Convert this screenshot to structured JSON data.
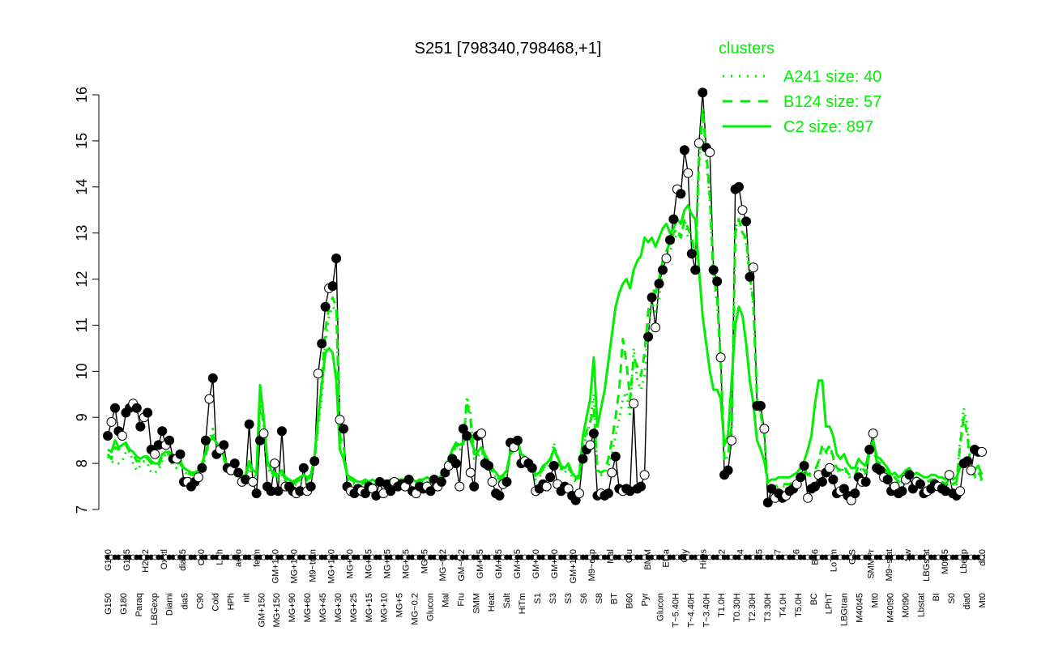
{
  "chart_data": {
    "type": "line",
    "title": "S251 [798340,798468,+1]",
    "xlabel": "",
    "ylabel": "",
    "ylim": [
      7,
      16
    ],
    "yticks": [
      7,
      8,
      9,
      10,
      11,
      12,
      13,
      14,
      15,
      16
    ],
    "grid": false,
    "legend": {
      "title": "clusters",
      "placement": "top-right",
      "color": "#00ee00",
      "entries": [
        {
          "label": "A241 size: 40",
          "style": "dotted"
        },
        {
          "label": "B124 size: 57",
          "style": "dashed"
        },
        {
          "label": "C2 size: 897",
          "style": "solid"
        }
      ]
    },
    "top_labels": [
      "G150",
      "G135",
      "H2O2",
      "Oxctl",
      "dia15",
      "C30",
      "LPh",
      "aero",
      "ferm",
      "GM+150",
      "MG+150",
      "M9~tran",
      "MG+120",
      "MG+60",
      "MG+45",
      "MG+25",
      "MG+15",
      "MG+5",
      "MG~0.2",
      "GM~0.2",
      "GM+15",
      "GM+25",
      "GM+45",
      "GM+60",
      "GM+90",
      "GM+120",
      "M9~exp",
      "Mal",
      "Glu",
      "BMM",
      "Etha",
      "Gly",
      "HiOs",
      "S2",
      "S4",
      "S5",
      "S7",
      "S6",
      "B36",
      "LoTm",
      "G/S",
      "SMMPr",
      "M9~stat",
      "Sw",
      "LBGstat",
      "M0t45",
      "Lbexp",
      "dia0"
    ],
    "bottom_labels": [
      "G150",
      "G180",
      "Paraq",
      "LBGexp",
      "Diami",
      "dia5",
      "C90",
      "Cold",
      "HPh",
      "nit",
      "GM+150",
      "MG+150",
      "MG+90",
      "MG+60",
      "MG+45",
      "MG+30",
      "MG+25",
      "MG+15",
      "MG+10",
      "MG+5",
      "MG~0.2",
      "Glucon",
      "Mal",
      "Fru",
      "SMM",
      "Heat",
      "Salt",
      "HiTm",
      "S1",
      "S3",
      "S3",
      "S6",
      "S8",
      "BT",
      "B60",
      "Pyr",
      "Glucon",
      "T~5.40H",
      "T~4.40H",
      "T~3.40H",
      "T1.0H",
      "T0.30H",
      "T2.30H",
      "T3.30H",
      "T4.0H",
      "T5.0H",
      "BC",
      "LPhT",
      "LBGtran",
      "M40t45",
      "Mt0",
      "M40t90",
      "M0t90",
      "Lbstat",
      "BI",
      "S0",
      "dia0",
      "Mt0"
    ],
    "series": [
      {
        "color": "#000000",
        "y": [
          8.6,
          8.9,
          9.2,
          8.7,
          8.6,
          9.1,
          9.2,
          9.3,
          9.2,
          8.8,
          9.0,
          9.1,
          8.3,
          8.2,
          8.4,
          8.7,
          8.4,
          8.5,
          8.1,
          8.1,
          8.2,
          7.6,
          7.6,
          7.5,
          7.6,
          7.7,
          7.9,
          8.5,
          9.4,
          9.85,
          8.2,
          8.3,
          8.4,
          7.9,
          7.85,
          8.0,
          7.8,
          7.6,
          7.65,
          8.85,
          7.6,
          7.35,
          8.5,
          8.65,
          7.5,
          7.4,
          8.0,
          7.4,
          8.7,
          7.5,
          7.5,
          7.4,
          7.35,
          7.4,
          7.9,
          7.4,
          7.5,
          8.05,
          9.95,
          10.6,
          11.4,
          11.8,
          11.85,
          12.45,
          8.95,
          8.75,
          7.5,
          7.4,
          7.35,
          7.45,
          7.4,
          7.35,
          7.5,
          7.45,
          7.3,
          7.6,
          7.35,
          7.55,
          7.4,
          7.6,
          7.5,
          7.55,
          7.5,
          7.65,
          7.4,
          7.35,
          7.5,
          7.45,
          7.5,
          7.4,
          7.65,
          7.5,
          7.6,
          7.8,
          7.95,
          8.1,
          8.0,
          7.5,
          8.75,
          8.6,
          7.8,
          7.5,
          8.6,
          8.65,
          8.0,
          7.95,
          7.6,
          7.35,
          7.3,
          7.55,
          7.6,
          8.45,
          8.35,
          8.5,
          8.0,
          8.05,
          8.0,
          7.9,
          7.4,
          7.45,
          7.55,
          7.5,
          7.7,
          7.95,
          7.55,
          7.4,
          7.5,
          7.45,
          7.3,
          7.2,
          7.35,
          8.1,
          8.3,
          8.4,
          8.65,
          7.3,
          7.35,
          7.3,
          7.35,
          7.8,
          8.15,
          7.45,
          7.4,
          7.45,
          7.4,
          9.3,
          7.45,
          7.5,
          7.75,
          10.75,
          11.6,
          10.95,
          11.9,
          12.2,
          12.45,
          12.85,
          13.3,
          13.95,
          13.85,
          14.8,
          14.3,
          12.55,
          12.2,
          14.95,
          16.05,
          14.85,
          14.75,
          12.2,
          11.95,
          10.3,
          7.75,
          7.85,
          8.5,
          13.95,
          14.0,
          13.5,
          13.25,
          12.05,
          12.25,
          9.25,
          9.25,
          8.75,
          7.15,
          7.45,
          7.25,
          7.35,
          7.25,
          7.3,
          7.4,
          7.45,
          7.55,
          7.7,
          7.95,
          7.25,
          7.45,
          7.5,
          7.75,
          7.6,
          7.8,
          7.9,
          7.65,
          7.35,
          7.4,
          7.45,
          7.3,
          7.2,
          7.35,
          7.7,
          7.6,
          7.6,
          8.3,
          8.65,
          7.9,
          7.85,
          7.7,
          7.65,
          7.4,
          7.5,
          7.35,
          7.4,
          7.65,
          7.75,
          7.45,
          7.6,
          7.55,
          7.35,
          7.4,
          7.45,
          7.55,
          7.5,
          7.45,
          7.4,
          7.75,
          7.35,
          7.3,
          7.4,
          8.0,
          8.05,
          7.85,
          8.3,
          8.25,
          8.25
        ]
      },
      {
        "name": "A241",
        "style": "dotted",
        "color": "#00ee00",
        "y": [
          8.15,
          8.05,
          8.0,
          8.0,
          8.05,
          8.25,
          8.3,
          8.0,
          7.85,
          7.95,
          8.05,
          8.0,
          7.8,
          7.8,
          7.85,
          8.05,
          8.2,
          8.15,
          7.95,
          7.9,
          8.1,
          7.85,
          7.75,
          7.65,
          7.7,
          7.75,
          7.9,
          8.15,
          8.5,
          8.75,
          8.4,
          8.25,
          8.1,
          7.9,
          7.75,
          7.8,
          7.65,
          7.55,
          7.6,
          7.9,
          7.75,
          7.7,
          9.5,
          8.8,
          7.95,
          7.75,
          7.7,
          7.65,
          7.75,
          7.6,
          7.55,
          7.5,
          7.55,
          7.6,
          7.65,
          7.6,
          7.65,
          8.0,
          8.8,
          9.4,
          10.6,
          11.2,
          11.4,
          11.3,
          8.5,
          8.35,
          7.65,
          7.6,
          7.55,
          7.5,
          7.5,
          7.55,
          7.5,
          7.55,
          7.5,
          7.55,
          7.5,
          7.5,
          7.55,
          7.5,
          7.55,
          7.55,
          7.55,
          7.6,
          7.55,
          7.5,
          7.55,
          7.55,
          7.6,
          7.55,
          7.6,
          7.55,
          7.65,
          7.8,
          8.0,
          8.2,
          8.35,
          8.3,
          8.35,
          9.45,
          9.1,
          8.1,
          8.15,
          8.25,
          8.1,
          7.95,
          7.8,
          7.7,
          7.6,
          7.65,
          7.75,
          8.2,
          8.25,
          8.4,
          8.1,
          8.05,
          7.95,
          7.9,
          7.65,
          7.7,
          7.85,
          7.9,
          8.0,
          8.45,
          8.1,
          7.85,
          7.8,
          7.9,
          7.7,
          7.6,
          7.65,
          8.3,
          8.6,
          8.9,
          9.5,
          7.8,
          7.75,
          7.8,
          7.95,
          8.2,
          8.6,
          8.95,
          9.4,
          9.55,
          9.0,
          10.5,
          9.8,
          9.6,
          9.9,
          10.9,
          11.5,
          11.3,
          11.6,
          12.2,
          12.3,
          12.6,
          12.8,
          13.0,
          12.9,
          13.3,
          12.9,
          12.8,
          12.6,
          14.4,
          15.7,
          14.6,
          13.7,
          12.0,
          11.5,
          10.2,
          8.05,
          8.15,
          8.7,
          13.1,
          13.3,
          13.0,
          12.8,
          12.0,
          11.4,
          9.4,
          9.05,
          8.6,
          7.4,
          7.45,
          7.45,
          7.5,
          7.5,
          7.5,
          7.5,
          7.55,
          7.6,
          7.7,
          7.85,
          7.7,
          7.75,
          7.8,
          8.0,
          8.4,
          8.2,
          8.35,
          8.1,
          7.85,
          7.8,
          7.9,
          7.75,
          7.65,
          7.7,
          7.9,
          7.85,
          7.75,
          8.2,
          8.35,
          8.0,
          7.95,
          7.85,
          7.75,
          7.6,
          7.65,
          7.55,
          7.6,
          7.7,
          7.75,
          7.6,
          7.65,
          7.6,
          7.55,
          7.55,
          7.6,
          7.6,
          7.55,
          7.55,
          7.5,
          7.6,
          7.5,
          7.55,
          8.5,
          9.2,
          8.8,
          7.75,
          7.7,
          7.8,
          7.6
        ]
      },
      {
        "name": "B124",
        "style": "dashed",
        "color": "#00ee00",
        "y": [
          8.2,
          8.1,
          8.35,
          8.3,
          8.4,
          8.4,
          8.25,
          8.2,
          8.05,
          8.05,
          8.1,
          8.1,
          8.0,
          7.95,
          7.95,
          8.15,
          8.2,
          8.2,
          8.05,
          8.0,
          8.0,
          7.85,
          7.8,
          7.75,
          7.75,
          7.8,
          7.95,
          8.2,
          8.45,
          8.6,
          8.4,
          8.3,
          8.1,
          7.9,
          7.8,
          7.8,
          7.7,
          7.65,
          7.7,
          8.0,
          7.8,
          7.75,
          9.25,
          8.9,
          8.0,
          7.8,
          7.75,
          7.7,
          7.8,
          7.65,
          7.6,
          7.55,
          7.6,
          7.65,
          7.7,
          7.65,
          7.7,
          8.1,
          8.9,
          9.8,
          10.9,
          11.4,
          11.6,
          11.4,
          8.6,
          8.4,
          7.7,
          7.65,
          7.6,
          7.55,
          7.55,
          7.6,
          7.55,
          7.6,
          7.55,
          7.6,
          7.55,
          7.55,
          7.6,
          7.55,
          7.6,
          7.6,
          7.6,
          7.65,
          7.6,
          7.55,
          7.6,
          7.6,
          7.65,
          7.6,
          7.65,
          7.6,
          7.7,
          7.85,
          8.05,
          8.25,
          8.4,
          8.35,
          8.4,
          9.35,
          8.95,
          8.2,
          8.2,
          8.3,
          8.15,
          8.0,
          7.85,
          7.75,
          7.65,
          7.7,
          7.8,
          8.2,
          8.3,
          8.45,
          8.15,
          8.1,
          8.0,
          7.95,
          7.7,
          7.75,
          7.9,
          7.95,
          8.05,
          8.35,
          8.1,
          7.9,
          7.85,
          7.95,
          7.75,
          7.65,
          7.7,
          8.4,
          8.7,
          8.9,
          9.2,
          7.85,
          7.8,
          7.85,
          8.1,
          8.5,
          9.0,
          9.6,
          10.7,
          10.2,
          9.4,
          10.3,
          10.1,
          9.9,
          10.4,
          11.3,
          11.8,
          11.7,
          12.0,
          12.4,
          12.6,
          12.8,
          13.0,
          13.1,
          12.9,
          13.3,
          13.1,
          12.9,
          12.5,
          14.6,
          15.7,
          14.8,
          13.8,
          12.1,
          11.6,
          10.2,
          8.1,
          8.2,
          8.8,
          13.0,
          13.3,
          13.0,
          12.9,
          12.1,
          11.5,
          9.4,
          9.1,
          8.65,
          7.45,
          7.5,
          7.5,
          7.55,
          7.55,
          7.55,
          7.55,
          7.6,
          7.65,
          7.75,
          7.9,
          7.75,
          7.8,
          7.85,
          8.05,
          8.4,
          8.25,
          8.4,
          8.15,
          7.9,
          7.85,
          7.95,
          7.8,
          7.7,
          7.75,
          7.95,
          7.9,
          7.8,
          8.25,
          8.4,
          8.05,
          8.0,
          7.9,
          7.8,
          7.65,
          7.7,
          7.6,
          7.65,
          7.75,
          7.8,
          7.65,
          7.7,
          7.65,
          7.6,
          7.6,
          7.65,
          7.65,
          7.6,
          7.6,
          7.55,
          7.65,
          7.55,
          7.6,
          8.4,
          9.0,
          8.6,
          7.8,
          7.75,
          7.85,
          7.65
        ]
      },
      {
        "name": "C2",
        "style": "solid",
        "color": "#00ee00",
        "y": [
          8.3,
          8.25,
          8.5,
          8.35,
          8.4,
          8.45,
          8.3,
          8.25,
          8.15,
          8.1,
          8.15,
          8.15,
          8.05,
          8.0,
          8.0,
          8.2,
          8.25,
          8.25,
          8.1,
          8.05,
          8.05,
          7.9,
          7.85,
          7.8,
          7.8,
          7.85,
          8.0,
          8.25,
          8.5,
          8.55,
          8.45,
          8.35,
          8.15,
          7.95,
          7.85,
          7.85,
          7.75,
          7.7,
          7.75,
          8.05,
          7.85,
          7.8,
          9.7,
          9.0,
          8.05,
          7.85,
          7.8,
          7.75,
          7.85,
          7.7,
          7.65,
          7.6,
          7.65,
          7.7,
          7.75,
          7.7,
          7.75,
          8.15,
          9.0,
          9.7,
          10.4,
          10.5,
          10.4,
          9.8,
          8.3,
          8.1,
          7.75,
          7.7,
          7.65,
          7.6,
          7.6,
          7.65,
          7.6,
          7.65,
          7.6,
          7.65,
          7.6,
          7.6,
          7.65,
          7.6,
          7.65,
          7.65,
          7.65,
          7.7,
          7.65,
          7.6,
          7.65,
          7.65,
          7.7,
          7.65,
          7.7,
          7.65,
          7.75,
          7.9,
          8.1,
          8.3,
          8.45,
          8.4,
          8.45,
          8.6,
          8.5,
          8.3,
          8.25,
          8.35,
          8.2,
          8.05,
          7.9,
          7.8,
          7.7,
          7.75,
          7.85,
          8.25,
          8.35,
          8.5,
          8.2,
          8.15,
          8.05,
          8.0,
          7.75,
          7.8,
          7.95,
          8.0,
          8.1,
          8.3,
          8.15,
          7.95,
          7.9,
          8.0,
          7.8,
          7.7,
          7.75,
          8.6,
          9.0,
          9.4,
          10.3,
          8.8,
          9.2,
          9.6,
          10.2,
          10.8,
          11.4,
          11.7,
          11.9,
          12.0,
          11.8,
          12.2,
          12.4,
          12.5,
          12.9,
          12.8,
          12.9,
          12.7,
          12.9,
          13.1,
          13.2,
          13.0,
          13.1,
          13.3,
          13.2,
          13.5,
          13.6,
          13.4,
          13.3,
          12.2,
          11.2,
          10.6,
          10.0,
          9.6,
          9.6,
          9.4,
          8.4,
          8.6,
          9.8,
          11.0,
          11.4,
          11.2,
          10.6,
          9.8,
          9.3,
          8.5,
          8.3,
          8.05,
          7.6,
          7.65,
          7.65,
          7.7,
          7.7,
          7.7,
          7.7,
          7.75,
          7.8,
          7.9,
          8.05,
          8.3,
          8.6,
          9.3,
          9.8,
          9.8,
          8.8,
          8.8,
          8.6,
          8.2,
          8.1,
          8.2,
          8.0,
          7.9,
          7.9,
          8.1,
          8.0,
          7.95,
          8.3,
          8.5,
          8.15,
          8.1,
          8.0,
          7.9,
          7.75,
          7.8,
          7.7,
          7.75,
          7.85,
          7.9,
          7.75,
          7.8,
          7.75,
          7.7,
          7.7,
          7.75,
          7.75,
          7.7,
          7.7,
          7.65,
          7.75,
          7.65,
          7.7,
          7.9,
          8.05,
          8.0,
          7.9,
          7.85,
          7.95,
          7.75
        ]
      }
    ]
  }
}
